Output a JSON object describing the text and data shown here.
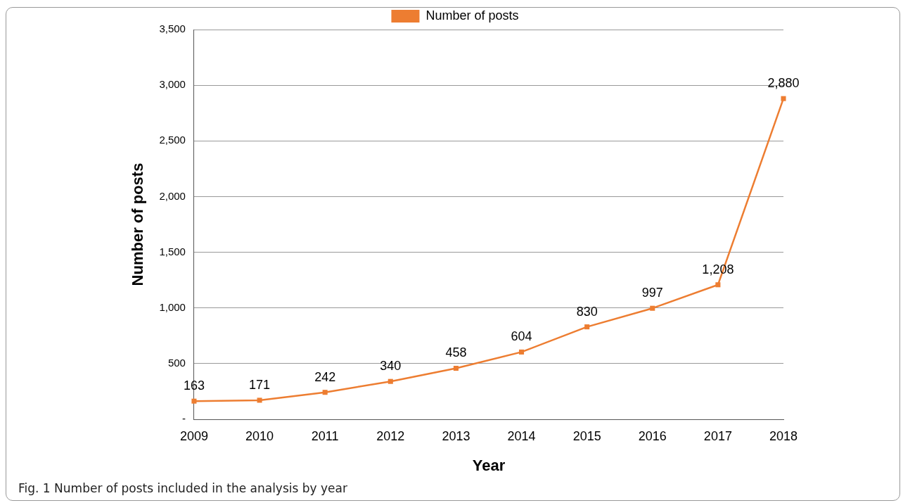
{
  "chart_data": {
    "type": "line",
    "xlabel": "Year",
    "ylabel": "Number of posts",
    "categories": [
      "2009",
      "2010",
      "2011",
      "2012",
      "2013",
      "2014",
      "2015",
      "2016",
      "2017",
      "2018"
    ],
    "series": [
      {
        "name": "Number of posts",
        "color": "#ed7d31",
        "values": [
          163,
          171,
          242,
          340,
          458,
          604,
          830,
          997,
          1208,
          2880
        ]
      }
    ],
    "value_labels": [
      "163",
      "171",
      "242",
      "340",
      "458",
      "604",
      "830",
      "997",
      "1,208",
      "2,880"
    ],
    "ylim": [
      0,
      3500
    ],
    "yticks": [
      {
        "value": 0,
        "label": "-"
      },
      {
        "value": 500,
        "label": "500"
      },
      {
        "value": 1000,
        "label": "1,000"
      },
      {
        "value": 1500,
        "label": "1,500"
      },
      {
        "value": 2000,
        "label": "2,000"
      },
      {
        "value": 2500,
        "label": "2,500"
      },
      {
        "value": 3000,
        "label": "3,000"
      },
      {
        "value": 3500,
        "label": "3,500"
      }
    ],
    "grid": "y",
    "legend": "top",
    "marker": "square",
    "line_style": "solid",
    "annotations": [
      "Fig. 1  Number of posts included in the analysis by year"
    ]
  }
}
